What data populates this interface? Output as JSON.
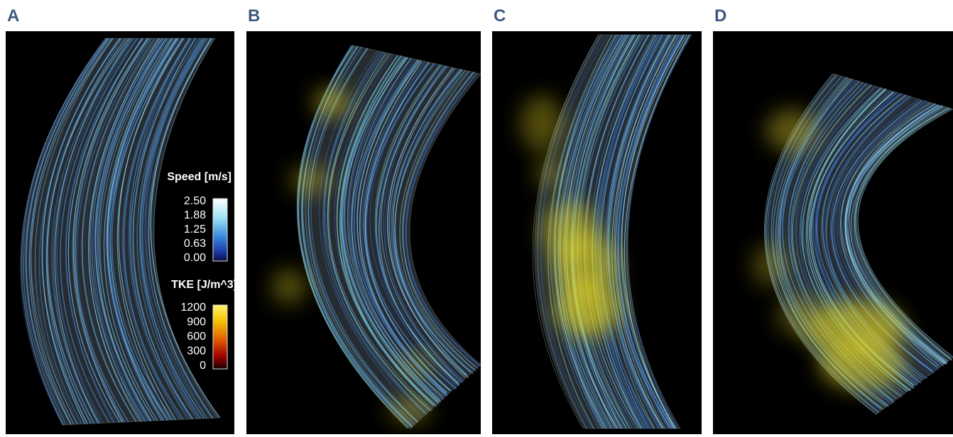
{
  "panels": [
    {
      "label": "A"
    },
    {
      "label": "B"
    },
    {
      "label": "C"
    },
    {
      "label": "D"
    }
  ],
  "legends": {
    "speed": {
      "title": "Speed [m/s]",
      "ticks": [
        "2.50",
        "1.88",
        "1.25",
        "0.63",
        "0.00"
      ]
    },
    "tke": {
      "title": "TKE [J/m^3]",
      "ticks": [
        "1200",
        "900",
        "600",
        "300",
        "0"
      ]
    }
  }
}
